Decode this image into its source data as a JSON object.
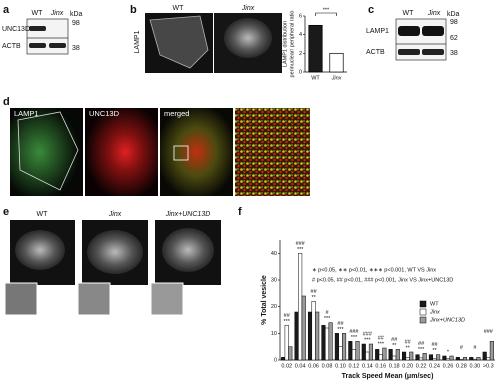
{
  "panels": {
    "a": {
      "label": "a",
      "columns": [
        "WT",
        "Jinx"
      ],
      "kda_header": "kDa",
      "rows": [
        "UNC13D",
        "ACTB"
      ],
      "markers": [
        98,
        38
      ]
    },
    "b": {
      "label": "b",
      "columns": [
        "WT",
        "Jinx"
      ],
      "stain": "LAMP1"
    },
    "c": {
      "label": "c",
      "columns": [
        "WT",
        "Jinx"
      ],
      "kda_header": "kDa",
      "rows": [
        "LAMP1",
        "ACTB"
      ],
      "markers": [
        98,
        62,
        38
      ]
    },
    "d": {
      "label": "d",
      "columns": [
        "LAMP1",
        "UNC13D",
        "merged"
      ]
    },
    "e": {
      "label": "e",
      "columns": [
        "WT",
        "Jinx",
        "Jinx+UNC13D"
      ]
    },
    "f": {
      "label": "f"
    }
  },
  "chart_data": [
    {
      "type": "bar",
      "ylabel": [
        "LAMP1 distribution",
        "perinuclear/ peripheral ratio"
      ],
      "categories": [
        "WT",
        "Jinx"
      ],
      "values": [
        5.0,
        2.0
      ],
      "colors": [
        "#1a1a1a",
        "#ffffff"
      ],
      "ylim": [
        0,
        6
      ],
      "yticks": [
        0,
        2,
        4,
        6
      ],
      "annotation": "***"
    },
    {
      "type": "grouped_bar",
      "xlabel": "Track Speed Mean (μm/sec)",
      "ylabel": "% Total vesicle",
      "categories": [
        "0.02",
        "0.04",
        "0.06",
        "0.08",
        "0.10",
        "0.12",
        "0.14",
        "0.16",
        "0.18",
        "0.20",
        "0.22",
        "0.24",
        "0.26",
        "0.28",
        "0.30",
        ">0.3"
      ],
      "series": [
        {
          "name": "WT",
          "color": "#1a1a1a",
          "values": [
            1,
            18,
            18,
            13,
            10,
            7,
            6,
            4,
            4,
            3,
            2,
            2,
            1.5,
            1,
            1,
            3
          ]
        },
        {
          "name": "Jinx",
          "color": "#ffffff",
          "values": [
            13,
            40,
            22,
            12,
            5,
            4,
            3,
            2,
            1.5,
            1,
            0.8,
            0.5,
            0.5,
            0.3,
            0.3,
            1
          ]
        },
        {
          "name": "Jinx+UNC13D",
          "color": "#9a9a9a",
          "values": [
            5,
            24,
            18,
            14,
            10,
            7,
            6,
            4.5,
            4,
            3,
            2.5,
            2,
            1.5,
            1,
            1,
            7
          ]
        }
      ],
      "sig_hash": [
        "##",
        "###",
        "##",
        "#",
        "##",
        "###",
        "###",
        "##",
        "##",
        "##",
        "##",
        "##",
        null,
        "#",
        "#",
        "###"
      ],
      "sig_star": [
        "***",
        "***",
        "**",
        "***",
        "***",
        "***",
        "***",
        "***",
        "**",
        "**",
        "***",
        "**",
        "*",
        null,
        null,
        null
      ],
      "annotations": [
        "∗ p<0.05, ∗∗ p<0.01, ∗∗∗ p<0.001, WT VS Jinx",
        "# p<0.05, ## p<0.01, ### p<0.001, Jinx VS Jinx+UNC13D"
      ],
      "ylim": [
        0,
        45
      ],
      "yticks": [
        0,
        10,
        20,
        30,
        40
      ],
      "legend": "right"
    }
  ]
}
